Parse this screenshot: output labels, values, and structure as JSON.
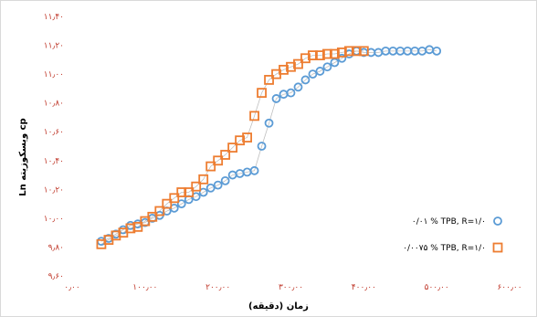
{
  "chart_data": {
    "type": "scatter",
    "xlabel": "زمان (دقیقه)",
    "ylabel": "Ln ویسکوزیته cp",
    "x_ticks": [
      "۰٫۰۰",
      "۱۰۰٫۰۰",
      "۲۰۰٫۰۰",
      "۳۰۰٫۰۰",
      "۴۰۰٫۰۰",
      "۵۰۰٫۰۰",
      "۶۰۰٫۰۰"
    ],
    "y_ticks": [
      "۹٫۶۰",
      "۹٫۸۰",
      "۱۰٫۰۰",
      "۱۰٫۲۰",
      "۱۰٫۴۰",
      "۱۰٫۶۰",
      "۱۰٫۸۰",
      "۱۱٫۰۰",
      "۱۱٫۲۰",
      "۱۱٫۴۰"
    ],
    "xlim": [
      0,
      600
    ],
    "ylim": [
      9.6,
      11.4
    ],
    "grid": false,
    "legend_position": "right",
    "series": [
      {
        "name": "۰/۰۱ % TPB, R=۱/۰",
        "marker": "circle",
        "color": "#5b9bd5",
        "x": [
          40,
          50,
          60,
          70,
          80,
          90,
          100,
          110,
          120,
          130,
          140,
          150,
          160,
          170,
          180,
          190,
          200,
          210,
          220,
          230,
          240,
          250,
          260,
          270,
          280,
          290,
          300,
          310,
          320,
          330,
          340,
          350,
          360,
          370,
          380,
          390,
          400,
          410,
          420,
          430,
          440,
          450,
          460,
          470,
          480,
          490,
          500
        ],
        "y": [
          9.84,
          9.86,
          9.89,
          9.92,
          9.95,
          9.96,
          9.97,
          10.0,
          10.02,
          10.05,
          10.07,
          10.1,
          10.13,
          10.15,
          10.18,
          10.21,
          10.23,
          10.26,
          10.3,
          10.31,
          10.32,
          10.33,
          10.5,
          10.66,
          10.83,
          10.86,
          10.87,
          10.91,
          10.96,
          11.0,
          11.02,
          11.05,
          11.08,
          11.11,
          11.14,
          11.16,
          11.15,
          11.15,
          11.15,
          11.16,
          11.16,
          11.16,
          11.16,
          11.16,
          11.16,
          11.17,
          11.16
        ]
      },
      {
        "name": "۰/۰۰۷۵ % TPB, R=۱/۰",
        "marker": "square",
        "color": "#ed7d31",
        "x": [
          40,
          50,
          60,
          70,
          80,
          90,
          100,
          110,
          120,
          130,
          140,
          150,
          160,
          170,
          180,
          190,
          200,
          210,
          220,
          230,
          240,
          250,
          260,
          270,
          280,
          290,
          300,
          310,
          320,
          330,
          340,
          350,
          360,
          370,
          380,
          390,
          400
        ],
        "y": [
          9.82,
          9.85,
          9.88,
          9.9,
          9.93,
          9.94,
          9.98,
          10.01,
          10.05,
          10.1,
          10.14,
          10.18,
          10.18,
          10.22,
          10.27,
          10.36,
          10.4,
          10.44,
          10.49,
          10.54,
          10.56,
          10.71,
          10.87,
          10.96,
          11.0,
          11.03,
          11.05,
          11.07,
          11.11,
          11.13,
          11.13,
          11.14,
          11.14,
          11.15,
          11.16,
          11.16,
          11.16
        ]
      }
    ]
  }
}
